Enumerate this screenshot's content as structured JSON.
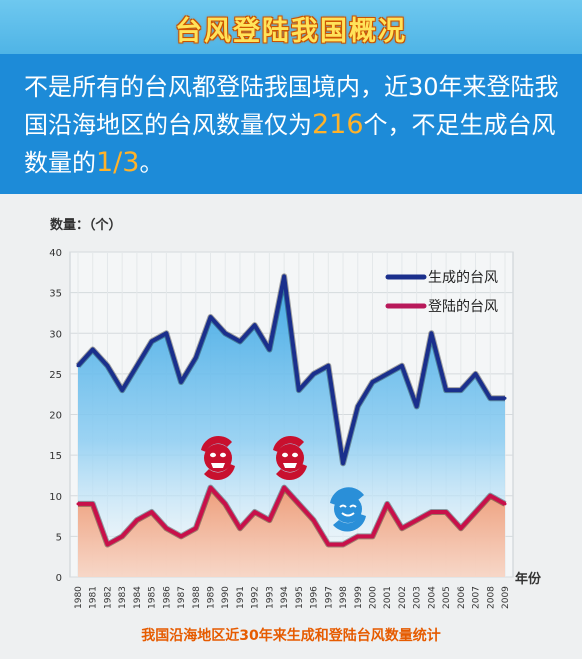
{
  "header": {
    "title": "台风登陆我国概况"
  },
  "banner": {
    "part1": "不是所有的台风都登陆我国境内，近30年来登陆我国沿海地区的台风数量仅为",
    "num1": "216",
    "part2": "个，不足生成台风数量的",
    "num2": "1/3",
    "part3": "。"
  },
  "caption": "我国沿海地区近30年来生成和登陆台风数量统计",
  "colors": {
    "generated_line": "#1a2f8c",
    "generated_fill": "#5bb6e8",
    "landed_line": "#c8104a",
    "landed_fill": "#f2a27e",
    "storm_red": "#c8102e",
    "storm_blue": "#2a8fd8"
  },
  "icons": [
    "typhoon-red-icon",
    "typhoon-red-icon",
    "typhoon-blue-icon"
  ],
  "chart_data": {
    "type": "area",
    "ylabel": "数量：（个）",
    "xlabel": "年份",
    "ylim": [
      0,
      40
    ],
    "yticks": [
      "0",
      "5",
      "10",
      "15",
      "20",
      "25",
      "30",
      "35",
      "40"
    ],
    "x": [
      "1980",
      "1981",
      "1982",
      "1983",
      "1984",
      "1985",
      "1986",
      "1987",
      "1988",
      "1989",
      "1990",
      "1991",
      "1992",
      "1993",
      "1994",
      "1995",
      "1996",
      "1997",
      "1998",
      "1999",
      "2000",
      "2001",
      "2002",
      "2003",
      "2004",
      "2005",
      "2006",
      "2007",
      "2008",
      "2009"
    ],
    "series": [
      {
        "name": "生成的台风",
        "values": [
          26,
          28,
          26,
          23,
          26,
          29,
          30,
          24,
          27,
          32,
          30,
          29,
          31,
          28,
          37,
          23,
          25,
          26,
          14,
          21,
          24,
          25,
          26,
          21,
          30,
          23,
          23,
          25,
          22,
          22
        ]
      },
      {
        "name": "登陆的台风",
        "values": [
          9,
          9,
          4,
          5,
          7,
          8,
          6,
          5,
          6,
          11,
          9,
          6,
          8,
          7,
          11,
          9,
          7,
          4,
          4,
          5,
          5,
          9,
          6,
          7,
          8,
          8,
          6,
          8,
          10,
          9
        ]
      }
    ],
    "legend": "top-right",
    "grid": true
  }
}
